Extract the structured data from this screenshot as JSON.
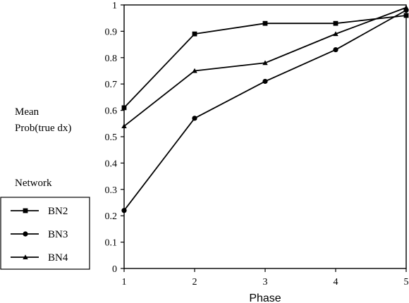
{
  "chart_data": {
    "type": "line",
    "x": [
      1,
      2,
      3,
      4,
      5
    ],
    "xlim": [
      1,
      5
    ],
    "ylim": [
      0,
      1
    ],
    "xlabel": "Phase",
    "ylabel": [
      "Mean",
      "Prob(true dx)"
    ],
    "x_ticks": [
      "1",
      "2",
      "3",
      "4",
      "5"
    ],
    "y_ticks": [
      "0",
      "0.1",
      "0.2",
      "0.3",
      "0.4",
      "0.5",
      "0.6",
      "0.7",
      "0.8",
      "0.9",
      "1"
    ],
    "legend_title": "Network",
    "legend_placement": "left",
    "grid": false,
    "series": [
      {
        "name": "BN2",
        "marker": "square",
        "values": [
          0.61,
          0.89,
          0.93,
          0.93,
          0.96
        ]
      },
      {
        "name": "BN3",
        "marker": "circle",
        "values": [
          0.22,
          0.57,
          0.71,
          0.83,
          0.98
        ]
      },
      {
        "name": "BN4",
        "marker": "triangle",
        "values": [
          0.54,
          0.75,
          0.78,
          0.89,
          0.99
        ]
      }
    ]
  },
  "colors": {
    "ink": "#000000",
    "background": "#ffffff"
  }
}
